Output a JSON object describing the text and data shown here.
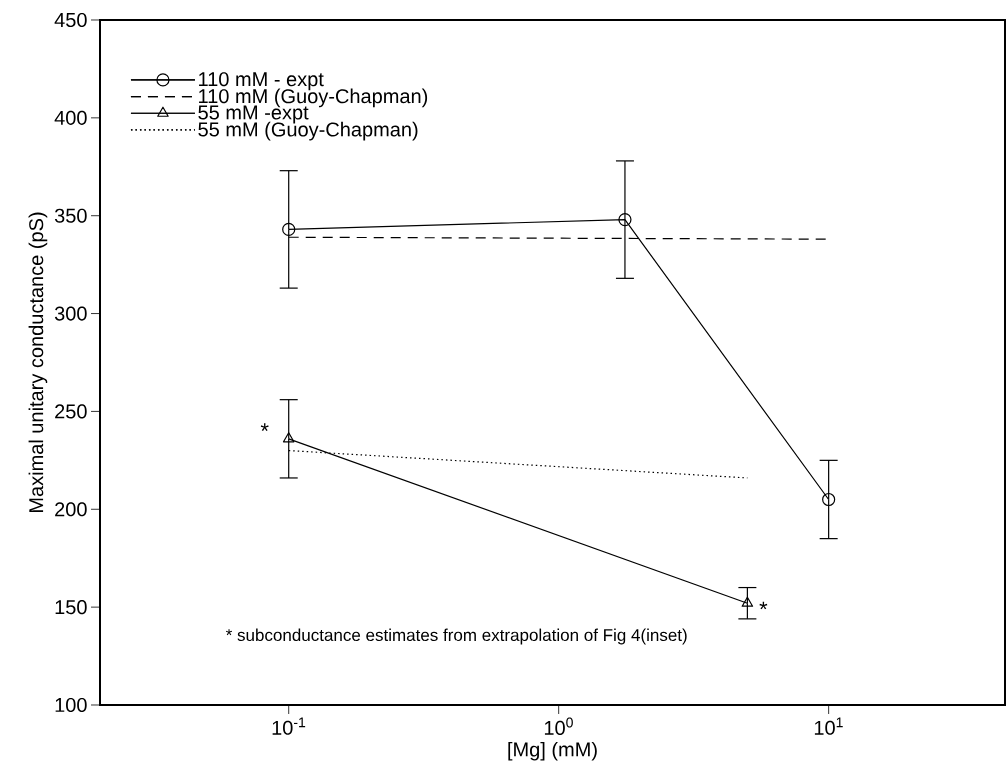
{
  "chart_data": {
    "type": "line",
    "xlabel": "[Mg] (mM)",
    "ylabel": "Maximal unitary conductance (pS)",
    "log": "x",
    "xlim": [
      0.02,
      45
    ],
    "xticks": [
      {
        "value": 0.1,
        "label": "10$^{-1}$"
      },
      {
        "value": 1,
        "label": "10$^{0}$"
      },
      {
        "value": 10,
        "label": "10$^{1}$"
      }
    ],
    "ylim": [
      100,
      450
    ],
    "yticks": [
      100,
      150,
      200,
      250,
      300,
      350,
      400,
      450
    ],
    "grid": false,
    "legend": "top left",
    "series": [
      {
        "name": "110 mM - expt",
        "color": "#000000",
        "marker": "circle",
        "line_style": "solid",
        "x": [
          0.1,
          1.76,
          10
        ],
        "values": [
          343,
          348,
          205
        ],
        "errors": [
          30,
          30,
          20
        ]
      },
      {
        "name": "110 mM  (Guoy-Chapman)",
        "color": "#000000",
        "marker": "none",
        "line_style": "dashed",
        "x": [
          0.1,
          10
        ],
        "values": [
          339,
          338
        ]
      },
      {
        "name": "55 mM -expt",
        "color": "#000000",
        "marker": "triangle",
        "line_style": "solid",
        "x": [
          0.1,
          5
        ],
        "values": [
          236,
          152
        ],
        "errors": [
          20,
          8
        ]
      },
      {
        "name": "55 mM  (Guoy-Chapman)",
        "color": "#000000",
        "marker": "none",
        "line_style": "dotted",
        "x": [
          0.1,
          5
        ],
        "values": [
          230,
          216
        ]
      }
    ],
    "annotations": [
      {
        "text": "*",
        "x": 0.1,
        "y": 236
      },
      {
        "text": "*",
        "x": 5,
        "y": 152
      },
      "*  subconductance estimates from extrapolation of Fig 4(inset)"
    ]
  }
}
